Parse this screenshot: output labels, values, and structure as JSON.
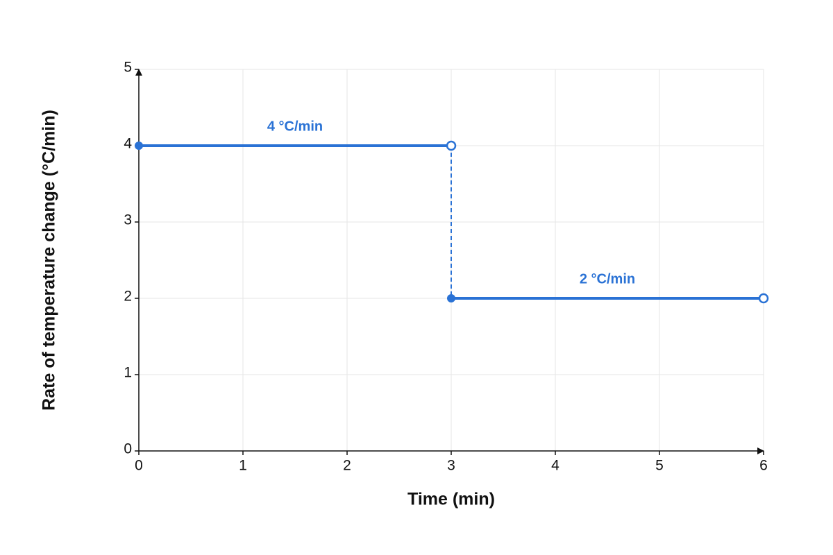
{
  "chart_data": {
    "type": "step",
    "x_label": "Time (min)",
    "y_label": "Rate of temperature change (°C/min)",
    "color": "#2a72d5",
    "segments": [
      {
        "x": [
          0,
          3
        ],
        "value": 4,
        "value_label": "4 °C/min",
        "closed": [
          true,
          false
        ]
      },
      {
        "x": [
          3,
          6
        ],
        "value": 2,
        "value_label": "2 °C/min",
        "closed": [
          true,
          false
        ]
      }
    ],
    "connector": "dashed",
    "xlim": [
      0,
      6
    ],
    "xticks": [
      0,
      1,
      2,
      3,
      4,
      5,
      6
    ],
    "ylim": [
      0,
      5
    ],
    "yticks": [
      0,
      1,
      2,
      3,
      4,
      5
    ],
    "grid": true
  }
}
